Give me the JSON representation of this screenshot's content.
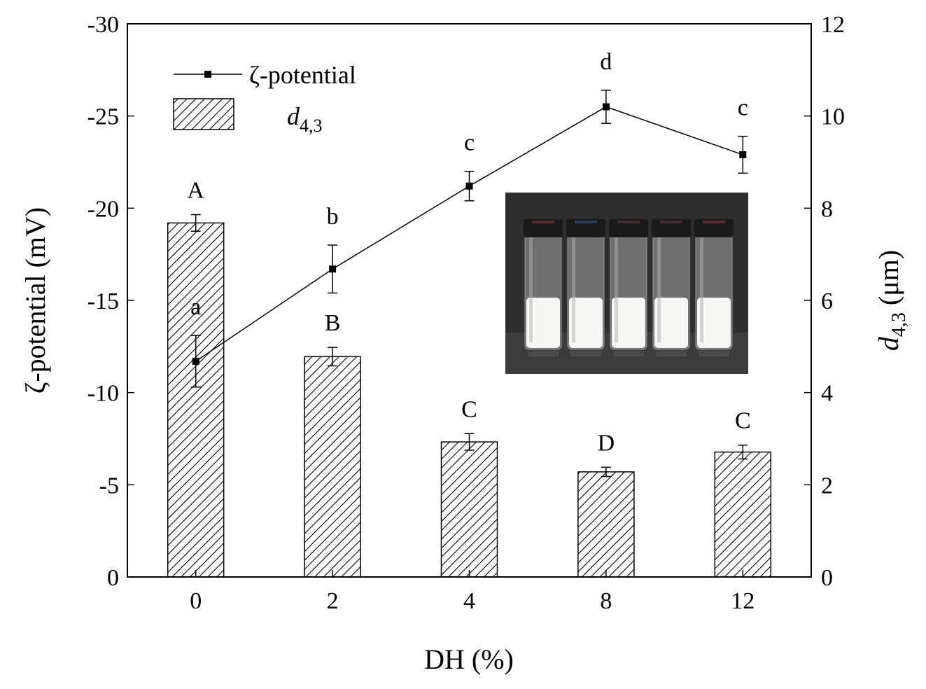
{
  "chart_data": {
    "type": "bar",
    "title": "",
    "categories": [
      "0",
      "2",
      "4",
      "8",
      "12"
    ],
    "xlabel": "DH (%)",
    "ylabel_left": "ζ-potential (mV)",
    "ylabel_right": {
      "main": "d",
      "sub": "4,3",
      "unit": " (μm)"
    },
    "y_left": {
      "min": 0,
      "max": -30,
      "ticks": [
        "0",
        "-5",
        "-10",
        "-15",
        "-20",
        "-25",
        "-30"
      ],
      "tick_values": [
        0,
        -5,
        -10,
        -15,
        -20,
        -25,
        -30
      ]
    },
    "y_right": {
      "min": 0,
      "max": 12,
      "ticks": [
        "0",
        "2",
        "4",
        "6",
        "8",
        "10",
        "12"
      ],
      "tick_values": [
        0,
        2,
        4,
        6,
        8,
        10,
        12
      ]
    },
    "grid": false,
    "legend_position": "top-left",
    "series": [
      {
        "name": "d4,3",
        "legend_main": "d",
        "legend_sub": "4,3",
        "kind": "bar",
        "axis": "right",
        "values": [
          7.68,
          4.78,
          2.93,
          2.28,
          2.71
        ],
        "errors": [
          0.18,
          0.2,
          0.18,
          0.1,
          0.15
        ],
        "significance": [
          "A",
          "B",
          "C",
          "D",
          "C"
        ],
        "pattern": "diagonal-hatch"
      },
      {
        "name": "ζ-potential",
        "kind": "line",
        "axis": "left",
        "values": [
          -11.7,
          -16.7,
          -21.2,
          -25.5,
          -22.9
        ],
        "errors": [
          1.4,
          1.3,
          0.8,
          0.9,
          1.0
        ],
        "significance": [
          "a",
          "b",
          "c",
          "d",
          "c"
        ],
        "color": "#000000"
      }
    ],
    "inset": {
      "description_icon": "photo-of-five-vials",
      "background": "#2e2e2e",
      "liquid_color": "#f6f6f4",
      "cap_color": "#1a1a1a"
    }
  }
}
